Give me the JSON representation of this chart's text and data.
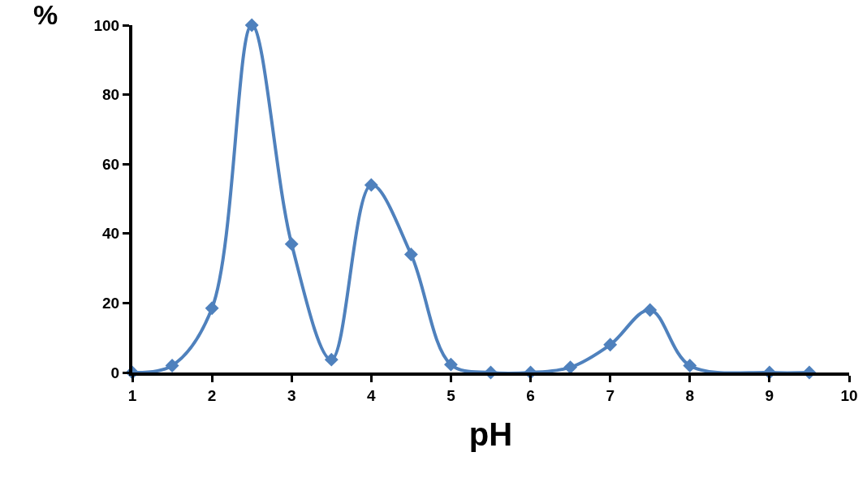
{
  "chart_data": {
    "type": "line",
    "xlabel": "pH",
    "ylabel": "%",
    "x": [
      1,
      1.5,
      2,
      2.5,
      3,
      3.5,
      4,
      4.5,
      5,
      5.5,
      6,
      6.5,
      7,
      7.5,
      8,
      9,
      9.5
    ],
    "series": [
      {
        "color": "#4f81bd",
        "values": [
          0,
          2,
          18.5,
          100,
          37,
          3.7,
          54,
          34,
          2.3,
          0,
          0,
          1.5,
          8,
          18,
          2,
          0,
          0
        ]
      }
    ],
    "xlim": [
      1,
      10
    ],
    "xticks": [
      1,
      2,
      3,
      4,
      5,
      6,
      7,
      8,
      9,
      10
    ],
    "ylim": [
      0,
      100
    ],
    "yticks": [
      0,
      20,
      40,
      60,
      80,
      100
    ],
    "grid": false,
    "marker": "diamond",
    "line_style": "solid"
  }
}
